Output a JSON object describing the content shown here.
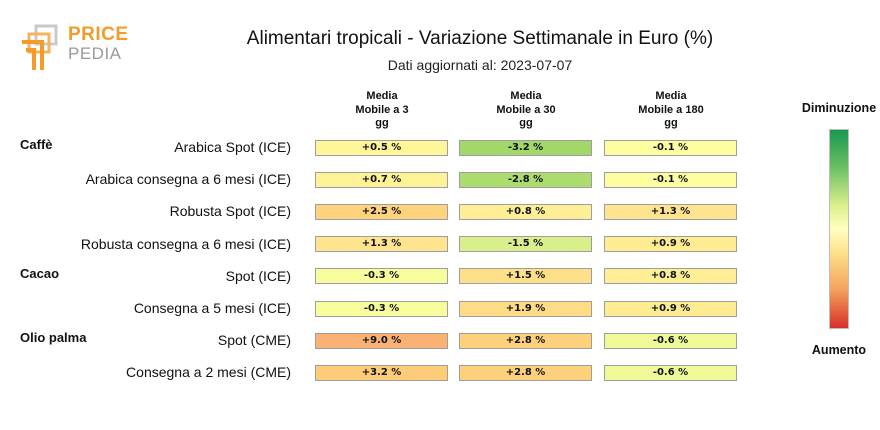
{
  "logo": {
    "line1": "PRICE",
    "line2": "PEDIA"
  },
  "chart_data": {
    "type": "table",
    "title": "Alimentari tropicali - Variazione Settimanale in Euro (%)",
    "subtitle": "Dati aggiornati al: 2023-07-07",
    "columns": [
      "Media\nMobile a 3\ngg",
      "Media\nMobile a 30\ngg",
      "Media\nMobile a 180\ngg"
    ],
    "groups": [
      {
        "name": "Caffè",
        "rows": [
          {
            "label": "Arabica Spot (ICE)",
            "values": [
              0.5,
              -3.2,
              -0.1
            ],
            "texts": [
              "+0.5 %",
              "-3.2 %",
              "-0.1 %"
            ]
          },
          {
            "label": "Arabica consegna a 6 mesi (ICE)",
            "values": [
              0.7,
              -2.8,
              -0.1
            ],
            "texts": [
              "+0.7 %",
              "-2.8 %",
              "-0.1 %"
            ]
          },
          {
            "label": "Robusta Spot (ICE)",
            "values": [
              2.5,
              0.8,
              1.3
            ],
            "texts": [
              "+2.5 %",
              "+0.8 %",
              "+1.3 %"
            ]
          },
          {
            "label": "Robusta consegna a 6 mesi (ICE)",
            "values": [
              1.3,
              -1.5,
              0.9
            ],
            "texts": [
              "+1.3 %",
              "-1.5 %",
              "+0.9 %"
            ]
          }
        ]
      },
      {
        "name": "Cacao",
        "rows": [
          {
            "label": "Spot (ICE)",
            "values": [
              -0.3,
              1.5,
              0.8
            ],
            "texts": [
              "-0.3 %",
              "+1.5 %",
              "+0.8 %"
            ]
          },
          {
            "label": "Consegna a 5 mesi (ICE)",
            "values": [
              -0.3,
              1.9,
              0.9
            ],
            "texts": [
              "-0.3 %",
              "+1.9 %",
              "+0.9 %"
            ]
          }
        ]
      },
      {
        "name": "Olio palma",
        "rows": [
          {
            "label": "Spot (CME)",
            "values": [
              9.0,
              2.8,
              -0.6
            ],
            "texts": [
              "+9.0 %",
              "+2.8 %",
              "-0.6 %"
            ]
          },
          {
            "label": "Consegna a 2 mesi (CME)",
            "values": [
              3.2,
              2.8,
              -0.6
            ],
            "texts": [
              "+3.2 %",
              "+2.8 %",
              "-0.6 %"
            ]
          }
        ]
      }
    ],
    "legend": {
      "top": "Diminuzione",
      "bottom": "Aumento"
    },
    "colors": {
      "decrease_strong": "#1a9850",
      "neutral": "#ffffbf",
      "increase_strong": "#d73027",
      "logo_orange": "#f39c2a",
      "logo_gray": "#9a9a9a"
    }
  }
}
